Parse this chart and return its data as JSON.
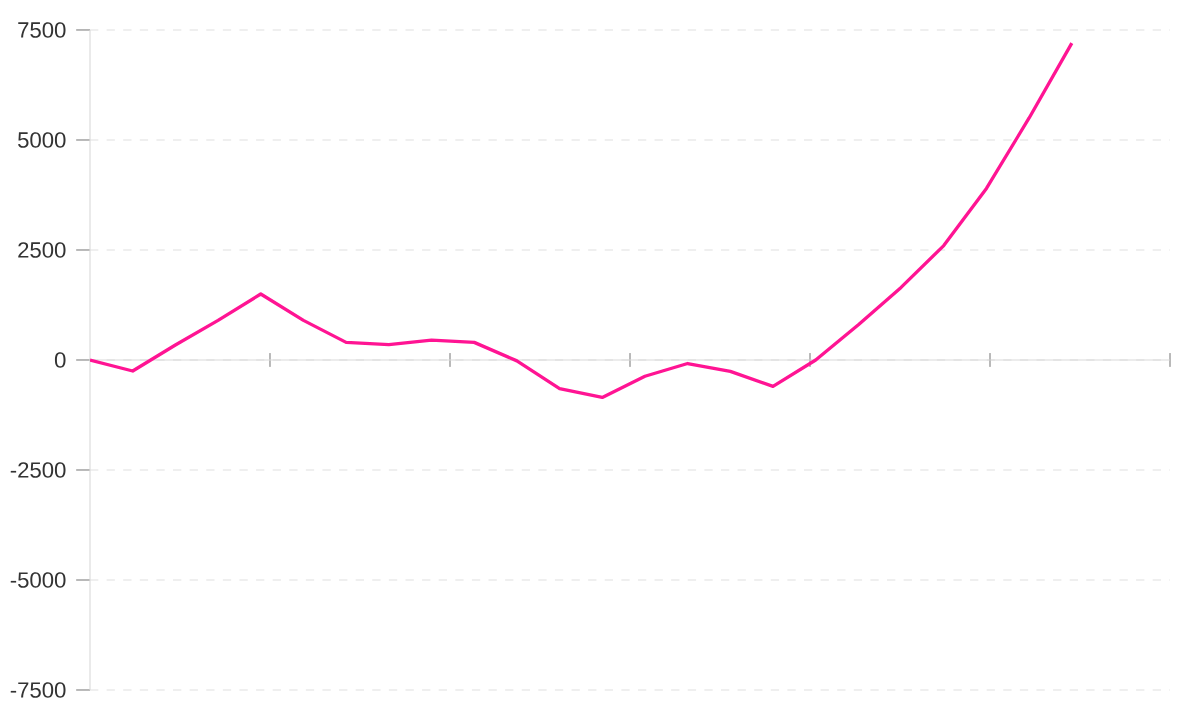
{
  "chart_data": {
    "type": "line",
    "tick_labels": "y",
    "grid": "y",
    "marker": "none",
    "line_style": "solid",
    "categories": [
      null,
      null,
      null,
      null,
      null,
      null,
      null,
      null,
      null,
      null,
      null,
      null,
      null,
      null,
      null,
      null,
      null,
      null,
      null,
      null,
      null,
      null,
      null,
      null
    ],
    "ylim": [
      -7500,
      7500
    ],
    "yticks": [
      -7500,
      -5000,
      -2500,
      0,
      2500,
      5000,
      7500
    ],
    "series": [
      {
        "color": "#ff1493",
        "values": [
          0,
          -250,
          340,
          900,
          1500,
          900,
          400,
          350,
          450,
          400,
          -20,
          -650,
          -850,
          -370,
          -80,
          -260,
          -600,
          0,
          800,
          1650,
          2600,
          3900,
          5500,
          7200
        ]
      }
    ]
  }
}
